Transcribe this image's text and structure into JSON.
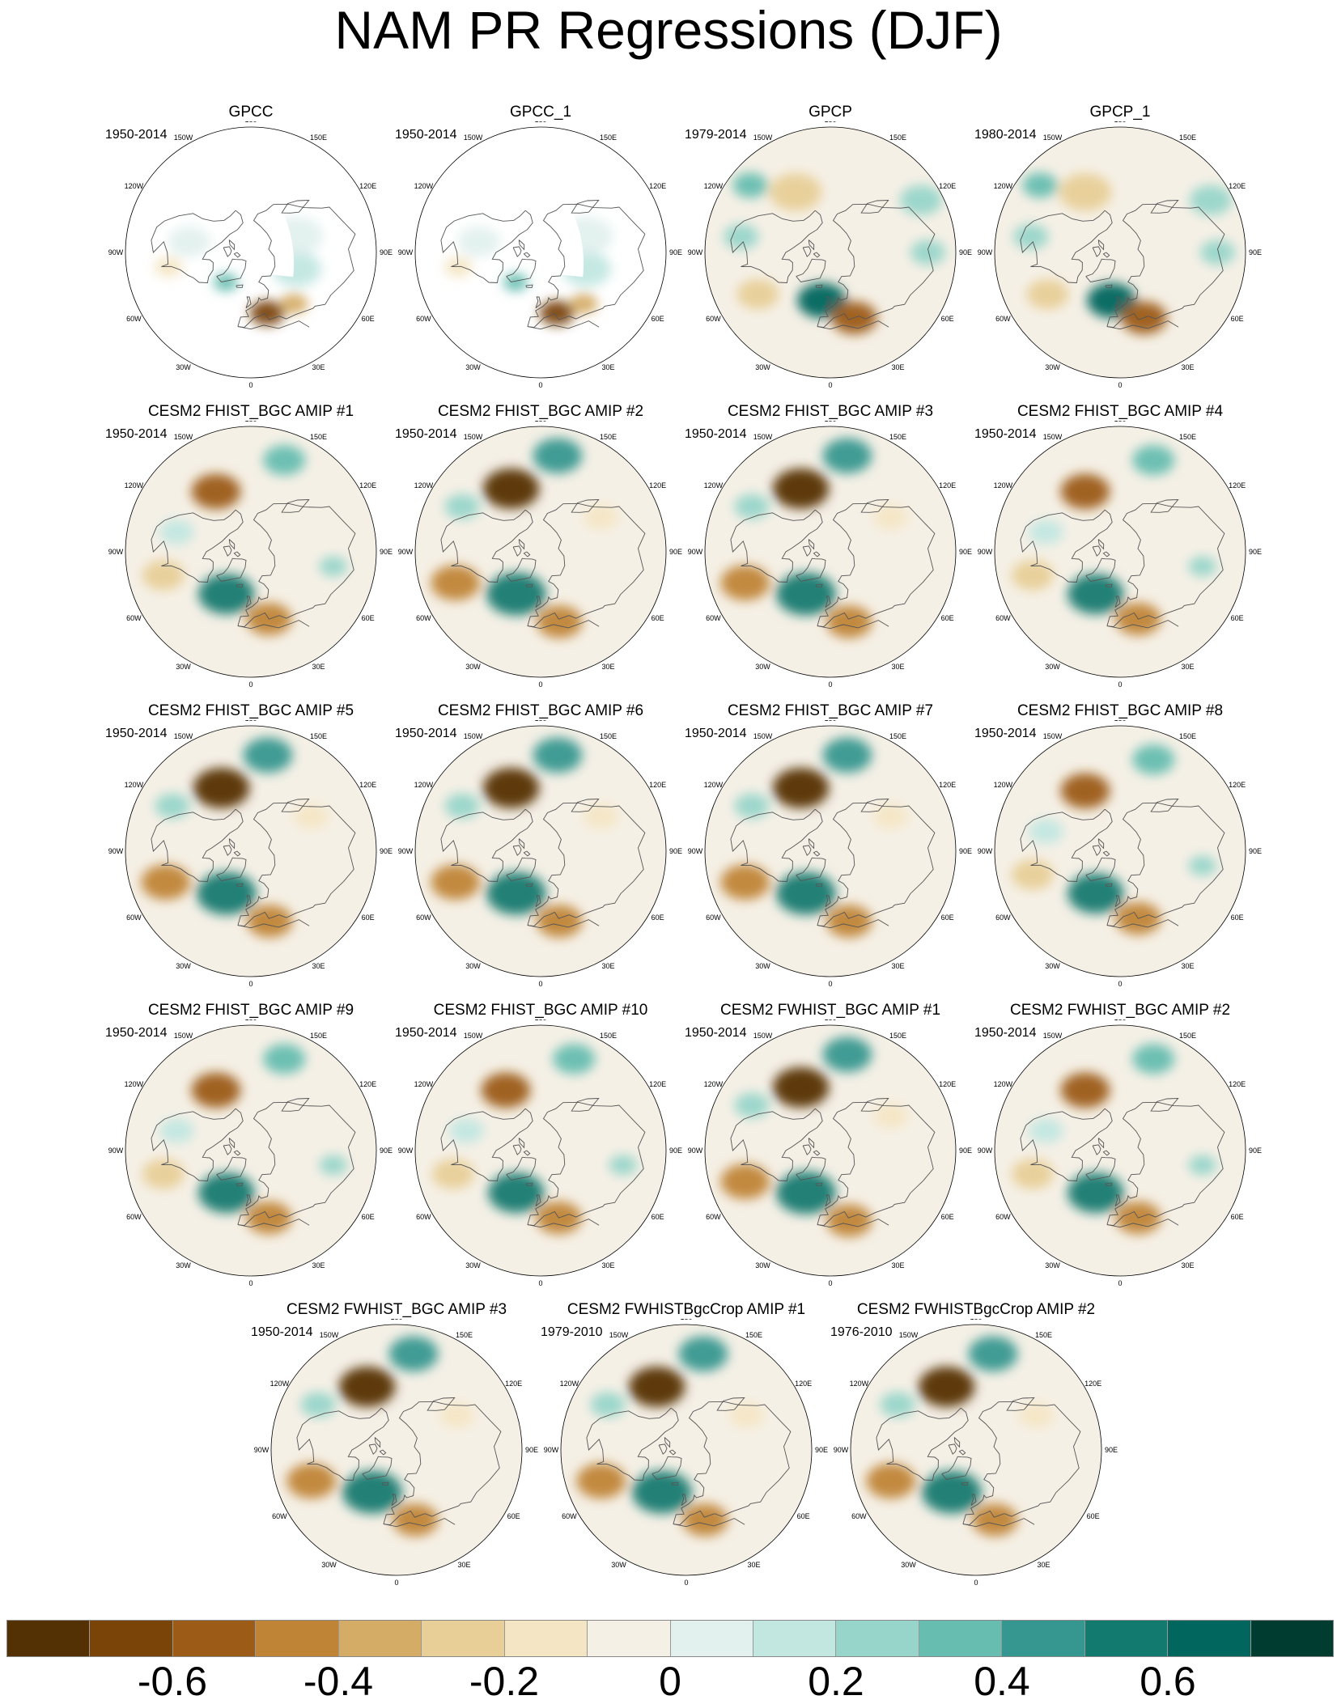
{
  "title": "NAM PR Regressions (DJF)",
  "panels": [
    {
      "title": "GPCC",
      "period": "1950-2014",
      "mask": true,
      "pattern": 0
    },
    {
      "title": "GPCC_1",
      "period": "1950-2014",
      "mask": true,
      "pattern": 0
    },
    {
      "title": "GPCP",
      "period": "1979-2014",
      "mask": false,
      "pattern": 1
    },
    {
      "title": "GPCP_1",
      "period": "1980-2014",
      "mask": false,
      "pattern": 1
    },
    {
      "title": "CESM2 FHIST_BGC AMIP #1",
      "period": "1950-2014",
      "mask": false,
      "pattern": 2
    },
    {
      "title": "CESM2 FHIST_BGC AMIP #2",
      "period": "1950-2014",
      "mask": false,
      "pattern": 3
    },
    {
      "title": "CESM2 FHIST_BGC AMIP #3",
      "period": "1950-2014",
      "mask": false,
      "pattern": 3
    },
    {
      "title": "CESM2 FHIST_BGC AMIP #4",
      "period": "1950-2014",
      "mask": false,
      "pattern": 2
    },
    {
      "title": "CESM2 FHIST_BGC AMIP #5",
      "period": "1950-2014",
      "mask": false,
      "pattern": 3
    },
    {
      "title": "CESM2 FHIST_BGC AMIP #6",
      "period": "1950-2014",
      "mask": false,
      "pattern": 3
    },
    {
      "title": "CESM2 FHIST_BGC AMIP #7",
      "period": "1950-2014",
      "mask": false,
      "pattern": 3
    },
    {
      "title": "CESM2 FHIST_BGC AMIP #8",
      "period": "1950-2014",
      "mask": false,
      "pattern": 2
    },
    {
      "title": "CESM2 FHIST_BGC AMIP #9",
      "period": "1950-2014",
      "mask": false,
      "pattern": 2
    },
    {
      "title": "CESM2 FHIST_BGC AMIP #10",
      "period": "1950-2014",
      "mask": false,
      "pattern": 2
    },
    {
      "title": "CESM2 FWHIST_BGC AMIP #1",
      "period": "1950-2014",
      "mask": false,
      "pattern": 3
    },
    {
      "title": "CESM2 FWHIST_BGC AMIP #2",
      "period": "1950-2014",
      "mask": false,
      "pattern": 2
    },
    {
      "title": "CESM2 FWHIST_BGC AMIP #3",
      "period": "1950-2014",
      "mask": false,
      "pattern": 3
    },
    {
      "title": "CESM2 FWHISTBgcCrop AMIP #1",
      "period": "1979-2010",
      "mask": false,
      "pattern": 3
    },
    {
      "title": "CESM2 FWHISTBgcCrop AMIP #2",
      "period": "1976-2010",
      "mask": false,
      "pattern": 3
    }
  ],
  "lon_labels": [
    "180",
    "150E",
    "120E",
    "90E",
    "60E",
    "30E",
    "0",
    "30W",
    "60W",
    "90W",
    "120W",
    "150W"
  ],
  "colorbar": {
    "colors": [
      "#543005",
      "#7a4409",
      "#9c5b17",
      "#c08436",
      "#d5ac66",
      "#e8cf97",
      "#f4e6c4",
      "#f5f0e6",
      "#e2f0ee",
      "#c2e7e1",
      "#97d5ca",
      "#66bdb0",
      "#35978f",
      "#137a70",
      "#01665e",
      "#003c30"
    ],
    "ticks": [
      "-0.6",
      "-0.4",
      "-0.2",
      "0",
      "0.2",
      "0.4",
      "0.6"
    ]
  },
  "patterns": [
    [
      {
        "lon": 15,
        "lat": 45,
        "r": 0.1,
        "v": -0.7
      },
      {
        "lon": 40,
        "lat": 42,
        "r": 0.08,
        "v": -0.4
      },
      {
        "lon": -40,
        "lat": 62,
        "r": 0.07,
        "v": 0.3
      },
      {
        "lon": 70,
        "lat": 55,
        "r": 0.14,
        "v": 0.12
      },
      {
        "lon": -100,
        "lat": 45,
        "r": 0.12,
        "v": 0.08
      },
      {
        "lon": 110,
        "lat": 55,
        "r": 0.15,
        "v": 0.05
      },
      {
        "lon": -80,
        "lat": 30,
        "r": 0.08,
        "v": -0.15
      }
    ],
    [
      {
        "lon": -10,
        "lat": 55,
        "r": 0.14,
        "v": 0.65
      },
      {
        "lon": 20,
        "lat": 40,
        "r": 0.13,
        "v": -0.6
      },
      {
        "lon": -60,
        "lat": 30,
        "r": 0.12,
        "v": -0.3
      },
      {
        "lon": -150,
        "lat": 40,
        "r": 0.15,
        "v": -0.3
      },
      {
        "lon": -130,
        "lat": 15,
        "r": 0.1,
        "v": 0.3
      },
      {
        "lon": 120,
        "lat": 15,
        "r": 0.12,
        "v": 0.25
      },
      {
        "lon": 90,
        "lat": 20,
        "r": 0.1,
        "v": 0.2
      },
      {
        "lon": -100,
        "lat": 25,
        "r": 0.1,
        "v": 0.2
      }
    ],
    [
      {
        "lon": -150,
        "lat": 40,
        "r": 0.14,
        "v": -0.55
      },
      {
        "lon": -30,
        "lat": 55,
        "r": 0.16,
        "v": 0.5
      },
      {
        "lon": 15,
        "lat": 40,
        "r": 0.13,
        "v": -0.5
      },
      {
        "lon": -75,
        "lat": 25,
        "r": 0.12,
        "v": -0.3
      },
      {
        "lon": 160,
        "lat": 20,
        "r": 0.12,
        "v": 0.3
      },
      {
        "lon": -105,
        "lat": 35,
        "r": 0.1,
        "v": 0.15
      },
      {
        "lon": 80,
        "lat": 30,
        "r": 0.08,
        "v": 0.2
      }
    ],
    [
      {
        "lon": -155,
        "lat": 40,
        "r": 0.16,
        "v": -0.75
      },
      {
        "lon": -30,
        "lat": 55,
        "r": 0.17,
        "v": 0.6
      },
      {
        "lon": 15,
        "lat": 38,
        "r": 0.13,
        "v": -0.45
      },
      {
        "lon": -70,
        "lat": 25,
        "r": 0.14,
        "v": -0.45
      },
      {
        "lon": 170,
        "lat": 20,
        "r": 0.14,
        "v": 0.45
      },
      {
        "lon": -120,
        "lat": 25,
        "r": 0.1,
        "v": 0.2
      },
      {
        "lon": 120,
        "lat": 40,
        "r": 0.1,
        "v": -0.2
      }
    ]
  ]
}
